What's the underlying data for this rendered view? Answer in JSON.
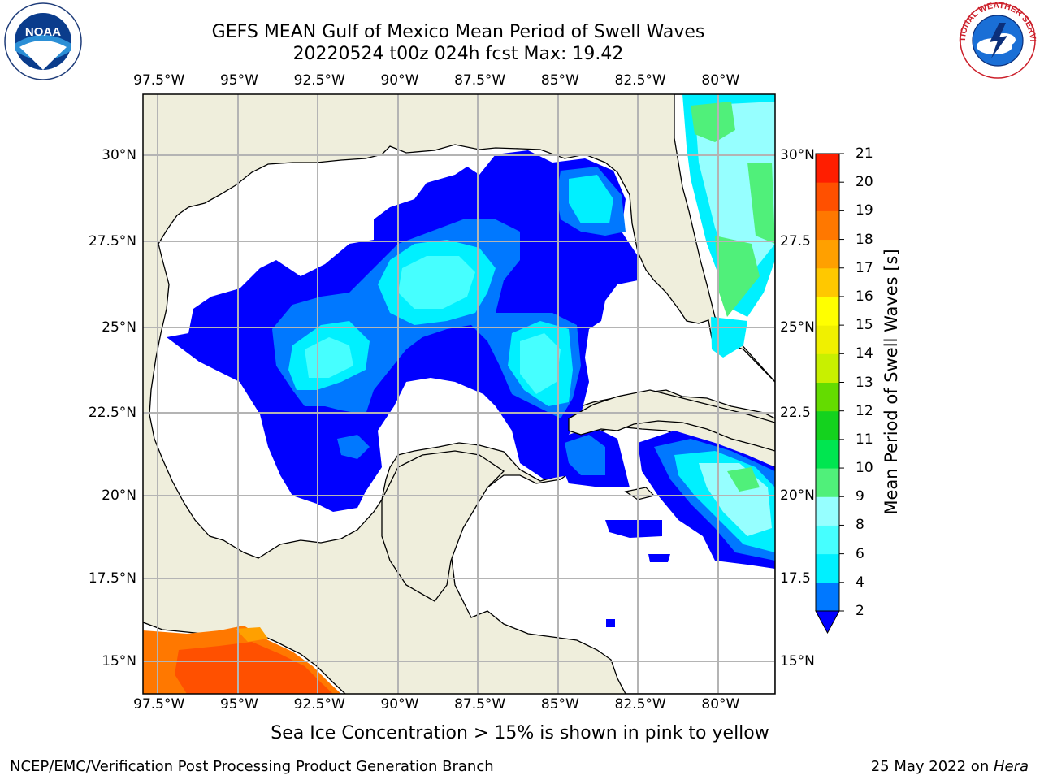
{
  "title": {
    "line1": "GEFS MEAN Gulf of Mexico Mean Period of Swell Waves",
    "line2": "20220524 t00z 024h fcst   Max: 19.42"
  },
  "map": {
    "longitude_labels": [
      "97.5°W",
      "95°W",
      "92.5°W",
      "90°W",
      "87.5°W",
      "85°W",
      "82.5°W",
      "80°W"
    ],
    "longitude_values": [
      -97.5,
      -95,
      -92.5,
      -90,
      -87.5,
      -85,
      -82.5,
      -80
    ],
    "latitude_labels_left": [
      "30°N",
      "27.5°N",
      "25°N",
      "22.5°N",
      "20°N",
      "17.5°N",
      "15°N"
    ],
    "latitude_labels_right": [
      "30°N",
      "27.5",
      "25°N",
      "22.5",
      "20°N",
      "17.5",
      "15°N"
    ],
    "latitude_values": [
      30,
      27.5,
      25,
      22.5,
      20,
      17.5,
      15
    ],
    "extent": {
      "lon": [
        -98,
        -78.3
      ],
      "lat": [
        14,
        32
      ]
    },
    "colors": {
      "land": "#efeedc",
      "water": "#ffffff",
      "grid": "#b4b4b4",
      "coast": "#000000"
    }
  },
  "colorbar": {
    "label": "Mean Period of Swell Waves [s]",
    "ticks": [
      "2",
      "4",
      "6",
      "8",
      "9",
      "10",
      "11",
      "12",
      "13",
      "14",
      "15",
      "16",
      "17",
      "18",
      "19",
      "20",
      "21"
    ],
    "colors": [
      "#0000ff",
      "#0078ff",
      "#00f0ff",
      "#46ffff",
      "#96ffff",
      "#50f07a",
      "#00e650",
      "#14d21e",
      "#64dc00",
      "#c8f000",
      "#f0f000",
      "#ffff00",
      "#ffc800",
      "#ffa000",
      "#ff7800",
      "#ff5000",
      "#ff1e00",
      "#ff0000"
    ]
  },
  "note": "Sea Ice Concentration > 15% is shown in pink to yellow",
  "footer": {
    "left": "NCEP/EMC/Verification Post Processing Product Generation Branch",
    "date": "25 May 2022 on ",
    "host": "Hera"
  },
  "logos": {
    "left": "NOAA",
    "right": "NATIONAL WEATHER SERVICE"
  }
}
